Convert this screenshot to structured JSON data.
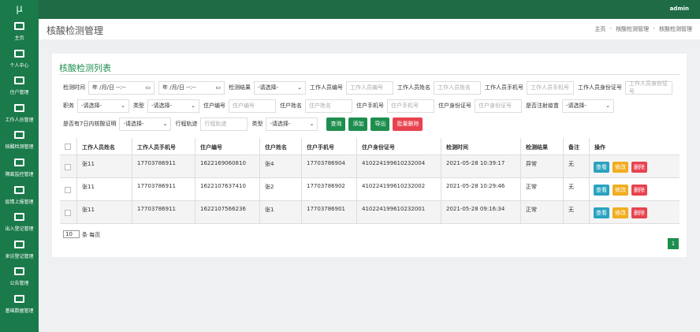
{
  "sidebar": {
    "logo": "μ",
    "menu": [
      "主页",
      "个人中心",
      "住户管理",
      "工作人员管理",
      "核酸检测管理",
      "隔离监控管理",
      "疫情上报管理",
      "出入登记管理",
      "来访登记管理",
      "公告管理",
      "基础数据管理"
    ]
  },
  "topbar": {
    "user": "admin"
  },
  "header": {
    "title": "核酸检测管理",
    "breadcrumb": [
      "主页",
      "核酸检测管理",
      "核酸检测管理"
    ]
  },
  "card": {
    "title": "核酸检测列表"
  },
  "filters": [
    [
      {
        "label": "检测时间",
        "kind": "date",
        "placeholder": "年 /月/日 --:--"
      },
      {
        "kind": "date",
        "placeholder": "年 /月/日 --:--"
      },
      {
        "label": "检测结果",
        "kind": "select",
        "placeholder": "-请选择-"
      },
      {
        "label": "工作人员编号",
        "kind": "input",
        "placeholder": "工作人员编号"
      },
      {
        "label": "工作人员姓名",
        "kind": "input",
        "placeholder": "工作人员姓名"
      },
      {
        "label": "工作人员手机号",
        "kind": "input",
        "placeholder": "工作人员手机号"
      },
      {
        "label": "工作人员身份证号",
        "kind": "input",
        "placeholder": "工作人员身份证号"
      }
    ],
    [
      {
        "label": "职务",
        "kind": "select",
        "placeholder": "-请选择-"
      },
      {
        "label": "类型",
        "kind": "select",
        "placeholder": "-请选择-"
      },
      {
        "label": "住户编号",
        "kind": "input",
        "placeholder": "住户编号"
      },
      {
        "label": "住户姓名",
        "kind": "input",
        "placeholder": "住户姓名"
      },
      {
        "label": "住户手机号",
        "kind": "input",
        "placeholder": "住户手机号"
      },
      {
        "label": "住户身份证号",
        "kind": "input",
        "placeholder": "住户身份证号"
      },
      {
        "label": "是否注射疫苗",
        "kind": "select",
        "placeholder": "-请选择-"
      }
    ],
    [
      {
        "label": "是否有7日内核酸证明",
        "kind": "select",
        "placeholder": "-请选择-"
      },
      {
        "label": "行程轨迹",
        "kind": "input",
        "placeholder": "行程轨迹"
      },
      {
        "label": "类型",
        "kind": "select",
        "placeholder": "-请选择-"
      }
    ]
  ],
  "buttons": [
    {
      "text": "查询",
      "color": "#1e8e4e"
    },
    {
      "text": "添加",
      "color": "#1e8e4e"
    },
    {
      "text": "导出",
      "color": "#1e8e4e"
    },
    {
      "text": "批量删除",
      "color": "#e8424f"
    }
  ],
  "table": {
    "headers": [
      "工作人员姓名",
      "工作人员手机号",
      "住户编号",
      "住户姓名",
      "住户手机号",
      "住户身份证号",
      "检测时间",
      "检测结果",
      "备注",
      "操作"
    ],
    "rows": [
      [
        "张11",
        "17703786911",
        "1622169060810",
        "张4",
        "17703786904",
        "410224199610232004",
        "2021-05-28 10:39:17",
        "异常",
        "无"
      ],
      [
        "张11",
        "17703786911",
        "1622107637410",
        "张2",
        "17703786902",
        "410224199610232002",
        "2021-05-28 10:29:46",
        "正常",
        "无"
      ],
      [
        "张11",
        "17703786911",
        "1622107566236",
        "张1",
        "17703786901",
        "410224199610232001",
        "2021-05-28 09:16:34",
        "正常",
        "无"
      ]
    ],
    "actions": [
      {
        "text": "查看",
        "color": "#2aa3c0"
      },
      {
        "text": "修改",
        "color": "#f0ad1e"
      },
      {
        "text": "删除",
        "color": "#e8424f"
      }
    ]
  },
  "pagination": {
    "page_size": 10,
    "page_size_suffix": "条 每页",
    "current_page": 1
  }
}
